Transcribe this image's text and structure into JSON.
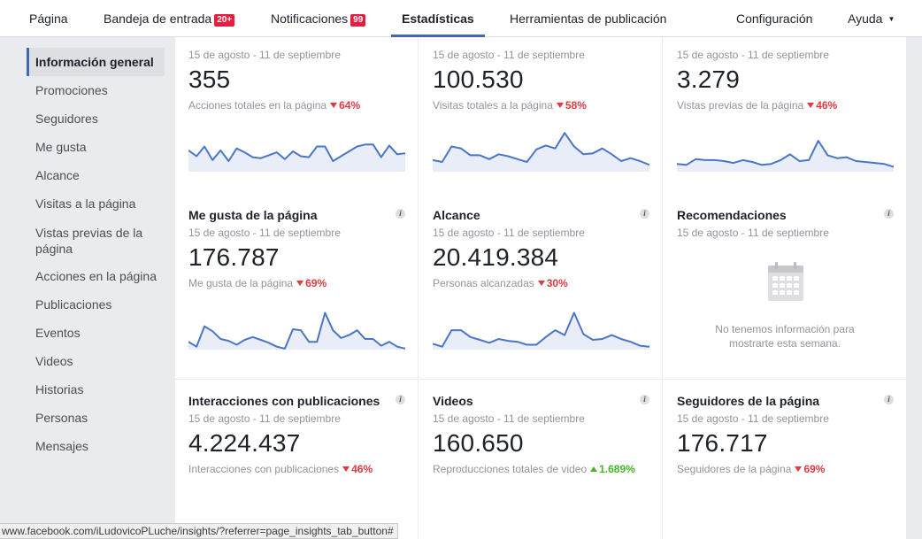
{
  "nav": {
    "pagina": "Página",
    "bandeja": "Bandeja de entrada",
    "bandeja_badge": "20+",
    "notificaciones": "Notificaciones",
    "notificaciones_badge": "99",
    "estadisticas": "Estadísticas",
    "herramientas": "Herramientas de publicación",
    "configuracion": "Configuración",
    "ayuda": "Ayuda"
  },
  "sidebar": {
    "items": [
      {
        "label": "Información general"
      },
      {
        "label": "Promociones"
      },
      {
        "label": "Seguidores"
      },
      {
        "label": "Me gusta"
      },
      {
        "label": "Alcance"
      },
      {
        "label": "Visitas a la página"
      },
      {
        "label": "Vistas previas de la página"
      },
      {
        "label": "Acciones en la página"
      },
      {
        "label": "Publicaciones"
      },
      {
        "label": "Eventos"
      },
      {
        "label": "Videos"
      },
      {
        "label": "Historias"
      },
      {
        "label": "Personas"
      },
      {
        "label": "Mensajes"
      }
    ]
  },
  "cards": [
    {
      "title": "",
      "date": "15 de agosto - 11 de septiembre",
      "value": "355",
      "sub": "Acciones totales en la página",
      "delta": "64%",
      "dir": "down",
      "spark": [
        22,
        16,
        26,
        12,
        22,
        11,
        24,
        20,
        15,
        14,
        17,
        20,
        13,
        21,
        16,
        15,
        26,
        26,
        11,
        16,
        21,
        26,
        28,
        28,
        15,
        27,
        18,
        19
      ]
    },
    {
      "title": "",
      "date": "15 de agosto - 11 de septiembre",
      "value": "100.530",
      "sub": "Visitas totales a la página",
      "delta": "58%",
      "dir": "down",
      "spark": [
        12,
        10,
        26,
        24,
        17,
        17,
        13,
        18,
        16,
        13,
        10,
        23,
        27,
        24,
        40,
        26,
        18,
        19,
        24,
        18,
        11,
        14,
        11,
        7
      ]
    },
    {
      "title": "",
      "date": "15 de agosto - 11 de septiembre",
      "value": "3.279",
      "sub": "Vistas previas de la página",
      "delta": "46%",
      "dir": "down",
      "spark": [
        8,
        7,
        13,
        12,
        12,
        11,
        9,
        12,
        10,
        7,
        8,
        12,
        18,
        11,
        12,
        32,
        17,
        14,
        15,
        11,
        10,
        9,
        8,
        5
      ]
    },
    {
      "title": "Me gusta de la página",
      "date": "15 de agosto - 11 de septiembre",
      "value": "176.787",
      "sub": "Me gusta de la página",
      "delta": "69%",
      "dir": "down",
      "spark": [
        8,
        3,
        24,
        19,
        11,
        9,
        5,
        10,
        13,
        10,
        7,
        3,
        1,
        21,
        20,
        8,
        8,
        38,
        20,
        12,
        15,
        20,
        11,
        11,
        4,
        8,
        3,
        1
      ]
    },
    {
      "title": "Alcance",
      "date": "15 de agosto - 11 de septiembre",
      "value": "20.419.384",
      "sub": "Personas alcanzadas",
      "delta": "30%",
      "dir": "down",
      "spark": [
        6,
        3,
        20,
        20,
        13,
        10,
        7,
        11,
        9,
        8,
        5,
        5,
        13,
        20,
        15,
        38,
        16,
        10,
        11,
        15,
        11,
        8,
        4,
        3
      ]
    },
    {
      "title": "Recomendaciones",
      "date": "15 de agosto - 11 de septiembre",
      "value": "",
      "sub": "",
      "delta": "",
      "dir": "none",
      "empty": "No tenemos información para mostrarte esta semana.",
      "spark": []
    },
    {
      "title": "Interacciones con publicaciones",
      "date": "15 de agosto - 11 de septiembre",
      "value": "4.224.437",
      "sub": "Interacciones con publicaciones",
      "delta": "46%",
      "dir": "down",
      "spark": [
        0,
        0,
        0,
        0,
        0,
        0,
        0,
        0,
        0,
        0,
        0,
        0,
        0,
        0,
        0,
        0,
        0,
        0,
        0,
        0,
        0,
        0,
        0,
        0
      ]
    },
    {
      "title": "Videos",
      "date": "15 de agosto - 11 de septiembre",
      "value": "160.650",
      "sub": "Reproducciones totales de video",
      "delta": "1.689%",
      "dir": "up",
      "spark": [
        0,
        0,
        0,
        0,
        0,
        0,
        0,
        0,
        0,
        0,
        0,
        0,
        0,
        0,
        0,
        0,
        0,
        0,
        0,
        0,
        0,
        0,
        0,
        0
      ]
    },
    {
      "title": "Seguidores de la página",
      "date": "15 de agosto - 11 de septiembre",
      "value": "176.717",
      "sub": "Seguidores de la página",
      "delta": "69%",
      "dir": "down",
      "spark": [
        0,
        0,
        0,
        0,
        0,
        0,
        0,
        0,
        0,
        0,
        0,
        0,
        0,
        0,
        0,
        0,
        0,
        0,
        0,
        0,
        0,
        0,
        0,
        0
      ]
    }
  ],
  "statusbar": "www.facebook.com/iLudovicoPLuche/insights/?referrer=page_insights_tab_button#",
  "colors": {
    "accent": "#4267b2",
    "line": "#4a76c7",
    "fill": "#e9edf7",
    "down": "#e0393e",
    "up": "#42b72a"
  }
}
